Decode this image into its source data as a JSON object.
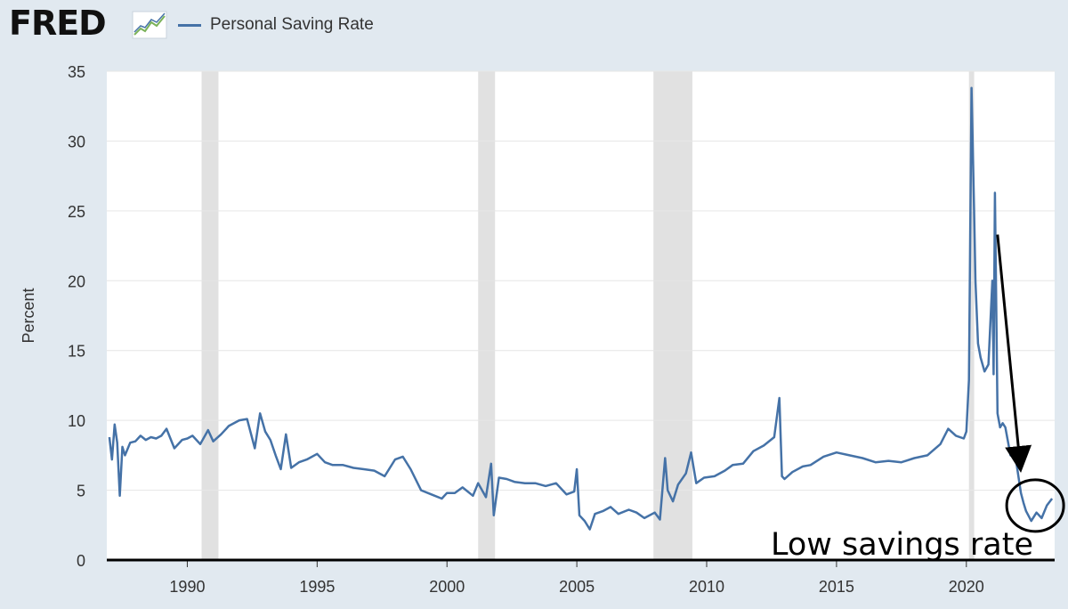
{
  "header": {
    "logo_text": "FRED",
    "logo_icon": "chart-line-icon",
    "legend_label": "Personal Saving Rate"
  },
  "colors": {
    "background": "#e1e9f0",
    "plot_background": "#ffffff",
    "series": "#4572a7",
    "recession": "#e1e1e1",
    "grid": "#e6e6e6",
    "annotation": "#000000"
  },
  "chart_data": {
    "type": "line",
    "title": "",
    "xlabel": "",
    "ylabel": "Percent",
    "xlim": [
      1986.9,
      2023.4
    ],
    "ylim": [
      0,
      35
    ],
    "x_ticks": [
      1990,
      1995,
      2000,
      2005,
      2010,
      2015,
      2020
    ],
    "y_ticks": [
      0,
      5,
      10,
      15,
      20,
      25,
      30,
      35
    ],
    "grid": "horizontal",
    "legend_position": "top-left",
    "recessions": [
      [
        1990.55,
        1991.2
      ],
      [
        2001.2,
        2001.85
      ],
      [
        2007.95,
        2009.45
      ],
      [
        2020.1,
        2020.3
      ]
    ],
    "series": [
      {
        "name": "Personal Saving Rate",
        "x": [
          1987.0,
          1987.1,
          1987.2,
          1987.3,
          1987.4,
          1987.5,
          1987.6,
          1987.8,
          1988.0,
          1988.2,
          1988.4,
          1988.6,
          1988.8,
          1989.0,
          1989.2,
          1989.5,
          1989.8,
          1990.0,
          1990.2,
          1990.5,
          1990.8,
          1991.0,
          1991.3,
          1991.6,
          1992.0,
          1992.3,
          1992.6,
          1992.8,
          1993.0,
          1993.2,
          1993.4,
          1993.6,
          1993.8,
          1994.0,
          1994.3,
          1994.6,
          1995.0,
          1995.3,
          1995.6,
          1996.0,
          1996.4,
          1996.8,
          1997.2,
          1997.6,
          1998.0,
          1998.3,
          1998.6,
          1999.0,
          1999.4,
          1999.8,
          2000.0,
          2000.3,
          2000.6,
          2001.0,
          2001.2,
          2001.5,
          2001.7,
          2001.8,
          2002.0,
          2002.3,
          2002.6,
          2003.0,
          2003.4,
          2003.8,
          2004.2,
          2004.6,
          2004.9,
          2005.0,
          2005.1,
          2005.3,
          2005.5,
          2005.7,
          2006.0,
          2006.3,
          2006.6,
          2007.0,
          2007.3,
          2007.6,
          2008.0,
          2008.2,
          2008.4,
          2008.5,
          2008.7,
          2008.9,
          2009.2,
          2009.4,
          2009.6,
          2009.9,
          2010.3,
          2010.7,
          2011.0,
          2011.4,
          2011.8,
          2012.2,
          2012.6,
          2012.8,
          2012.9,
          2013.0,
          2013.3,
          2013.7,
          2014.0,
          2014.5,
          2015.0,
          2015.5,
          2016.0,
          2016.5,
          2017.0,
          2017.5,
          2018.0,
          2018.5,
          2019.0,
          2019.3,
          2019.6,
          2019.9,
          2020.0,
          2020.1,
          2020.2,
          2020.3,
          2020.35,
          2020.45,
          2020.55,
          2020.7,
          2020.85,
          2021.0,
          2021.05,
          2021.1,
          2021.2,
          2021.3,
          2021.4,
          2021.5,
          2021.7,
          2021.9,
          2022.1,
          2022.2,
          2022.3,
          2022.5,
          2022.7,
          2022.9,
          2023.1,
          2023.3
        ],
        "values": [
          8.8,
          7.2,
          9.7,
          8.4,
          4.6,
          8.1,
          7.5,
          8.4,
          8.5,
          8.9,
          8.6,
          8.8,
          8.7,
          8.9,
          9.4,
          8.0,
          8.6,
          8.7,
          8.9,
          8.3,
          9.3,
          8.5,
          9.0,
          9.6,
          10.0,
          10.1,
          8.0,
          10.5,
          9.2,
          8.6,
          7.5,
          6.5,
          9.0,
          6.6,
          7.0,
          7.2,
          7.6,
          7.0,
          6.8,
          6.8,
          6.6,
          6.5,
          6.4,
          6.0,
          7.2,
          7.4,
          6.5,
          5.0,
          4.7,
          4.4,
          4.8,
          4.8,
          5.2,
          4.6,
          5.5,
          4.5,
          6.9,
          3.2,
          5.9,
          5.8,
          5.6,
          5.5,
          5.5,
          5.3,
          5.5,
          4.7,
          4.9,
          6.5,
          3.2,
          2.8,
          2.2,
          3.3,
          3.5,
          3.8,
          3.3,
          3.6,
          3.4,
          3.0,
          3.4,
          2.9,
          7.3,
          5.0,
          4.2,
          5.4,
          6.2,
          7.7,
          5.5,
          5.9,
          6.0,
          6.4,
          6.8,
          6.9,
          7.8,
          8.2,
          8.8,
          11.6,
          6.0,
          5.8,
          6.3,
          6.7,
          6.8,
          7.4,
          7.7,
          7.5,
          7.3,
          7.0,
          7.1,
          7.0,
          7.3,
          7.5,
          8.3,
          9.4,
          8.9,
          8.7,
          9.2,
          12.9,
          33.8,
          25.0,
          20.0,
          15.5,
          14.5,
          13.5,
          14.0,
          20.0,
          13.3,
          26.3,
          10.5,
          9.5,
          9.8,
          9.5,
          7.5,
          7.3,
          4.8,
          4.1,
          3.5,
          2.8,
          3.4,
          3.0,
          3.9,
          4.4
        ]
      }
    ],
    "annotations": [
      {
        "text": "Low savings rate",
        "type": "label"
      },
      {
        "type": "arrow",
        "from": [
          2021.2,
          23.3
        ],
        "to": [
          2022.05,
          7.2
        ]
      },
      {
        "type": "circle",
        "center": [
          2022.65,
          3.9
        ]
      }
    ]
  }
}
